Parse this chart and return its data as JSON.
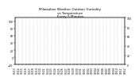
{
  "title": "Milwaukee Weather Outdoor Humidity\nvs Temperature\nEvery 5 Minutes",
  "title_fontsize": 3.0,
  "background_color": "#ffffff",
  "blue_color": "#0000ff",
  "red_color": "#ff0000",
  "ylim_left": [
    -20,
    110
  ],
  "ylim_right": [
    0,
    100
  ],
  "tick_fontsize": 2.2,
  "grid_color": "#bbbbbb",
  "grid_linestyle": "--",
  "grid_linewidth": 0.25,
  "yticks_left": [
    -20,
    0,
    20,
    40,
    60,
    80,
    100
  ],
  "yticks_right": [
    0,
    20,
    40,
    60,
    80,
    100
  ],
  "x_labels": [
    "01/13",
    "01/14",
    "01/15",
    "01/16",
    "01/17",
    "01/18",
    "01/19",
    "01/20",
    "01/21",
    "01/22",
    "01/23",
    "01/24",
    "01/25",
    "01/26",
    "01/27",
    "01/28",
    "01/29",
    "01/30",
    "01/31",
    "02/01",
    "02/02",
    "02/03",
    "02/04",
    "02/05",
    "02/06",
    "02/07",
    "02/08",
    "02/09",
    "02/10",
    "02/11",
    "02/12"
  ]
}
